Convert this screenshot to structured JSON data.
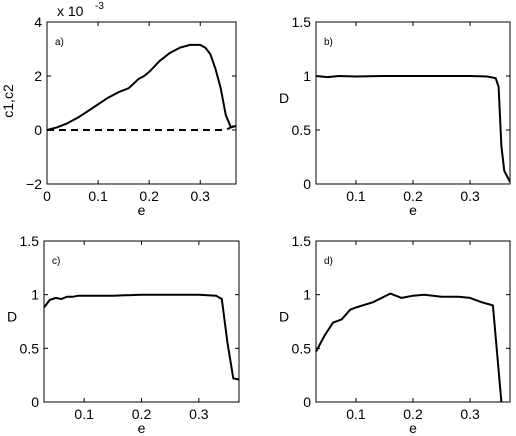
{
  "chart_data": [
    {
      "type": "line",
      "panel_label": "a)",
      "xlabel": "e",
      "ylabel": "c1,c2",
      "y_multiplier_base": "x 10",
      "y_multiplier_exp": "-3",
      "xlim": [
        0,
        0.37
      ],
      "ylim": [
        -2,
        4
      ],
      "xticks": [
        0,
        0.1,
        0.2,
        0.3
      ],
      "xtick_labels": [
        "0",
        "0.1",
        "0.2",
        "0.3"
      ],
      "yticks": [
        -2,
        0,
        2,
        4
      ],
      "ytick_labels": [
        "−2",
        "0",
        "2",
        "4"
      ],
      "series": [
        {
          "style": "solid",
          "x": [
            0,
            0.02,
            0.04,
            0.06,
            0.08,
            0.1,
            0.12,
            0.14,
            0.16,
            0.18,
            0.19,
            0.2,
            0.22,
            0.24,
            0.26,
            0.28,
            0.3,
            0.31,
            0.32,
            0.33,
            0.34,
            0.35,
            0.36,
            0.37
          ],
          "y": [
            0,
            0.1,
            0.25,
            0.45,
            0.7,
            0.95,
            1.2,
            1.4,
            1.55,
            1.9,
            2.0,
            2.15,
            2.55,
            2.85,
            3.05,
            3.15,
            3.15,
            3.05,
            2.8,
            2.25,
            1.55,
            0.55,
            0.1,
            0.15
          ]
        },
        {
          "style": "dashed",
          "x": [
            0,
            0.05,
            0.1,
            0.15,
            0.2,
            0.25,
            0.3,
            0.34,
            0.355,
            0.365,
            0.37
          ],
          "y": [
            0,
            0,
            0,
            0,
            0,
            0,
            0,
            0,
            0.05,
            0.15,
            0.2
          ]
        }
      ]
    },
    {
      "type": "line",
      "panel_label": "b)",
      "xlabel": "e",
      "ylabel": "D",
      "xlim": [
        0.03,
        0.37
      ],
      "ylim": [
        0,
        1.5
      ],
      "xticks": [
        0.1,
        0.2,
        0.3
      ],
      "xtick_labels": [
        "0.1",
        "0.2",
        "0.3"
      ],
      "yticks": [
        0,
        0.5,
        1,
        1.5
      ],
      "ytick_labels": [
        "0",
        "0.5",
        "1",
        "1.5"
      ],
      "series": [
        {
          "style": "solid",
          "x": [
            0.03,
            0.05,
            0.07,
            0.1,
            0.15,
            0.2,
            0.25,
            0.3,
            0.33,
            0.345,
            0.35,
            0.355,
            0.36,
            0.37
          ],
          "y": [
            1.0,
            0.99,
            1.0,
            0.995,
            1.0,
            1.0,
            1.0,
            1.0,
            0.995,
            0.98,
            0.9,
            0.35,
            0.12,
            0.02
          ]
        }
      ]
    },
    {
      "type": "line",
      "panel_label": "c)",
      "xlabel": "e",
      "ylabel": "D",
      "xlim": [
        0.03,
        0.37
      ],
      "ylim": [
        0,
        1.5
      ],
      "xticks": [
        0.1,
        0.2,
        0.3
      ],
      "xtick_labels": [
        "0.1",
        "0.2",
        "0.3"
      ],
      "yticks": [
        0,
        0.5,
        1,
        1.5
      ],
      "ytick_labels": [
        "0",
        "0.5",
        "1",
        "1.5"
      ],
      "series": [
        {
          "style": "solid",
          "x": [
            0.03,
            0.04,
            0.05,
            0.06,
            0.07,
            0.08,
            0.09,
            0.1,
            0.15,
            0.2,
            0.25,
            0.3,
            0.33,
            0.34,
            0.35,
            0.36,
            0.37
          ],
          "y": [
            0.88,
            0.95,
            0.97,
            0.96,
            0.98,
            0.98,
            0.99,
            0.99,
            0.99,
            1.0,
            1.0,
            1.0,
            0.99,
            0.96,
            0.55,
            0.22,
            0.21
          ]
        }
      ]
    },
    {
      "type": "line",
      "panel_label": "d)",
      "xlabel": "e",
      "ylabel": "D",
      "xlim": [
        0.03,
        0.37
      ],
      "ylim": [
        0,
        1.5
      ],
      "xticks": [
        0.1,
        0.2,
        0.3
      ],
      "xtick_labels": [
        "0.1",
        "0.2",
        "0.3"
      ],
      "yticks": [
        0,
        0.5,
        1,
        1.5
      ],
      "ytick_labels": [
        "0",
        "0.5",
        "1",
        "1.5"
      ],
      "series": [
        {
          "style": "solid",
          "x": [
            0.03,
            0.045,
            0.06,
            0.075,
            0.09,
            0.1,
            0.13,
            0.16,
            0.18,
            0.2,
            0.22,
            0.25,
            0.28,
            0.3,
            0.32,
            0.34,
            0.355
          ],
          "y": [
            0.47,
            0.62,
            0.74,
            0.77,
            0.86,
            0.88,
            0.93,
            1.01,
            0.97,
            0.99,
            1.0,
            0.98,
            0.98,
            0.97,
            0.93,
            0.9,
            0.0
          ]
        }
      ]
    }
  ]
}
